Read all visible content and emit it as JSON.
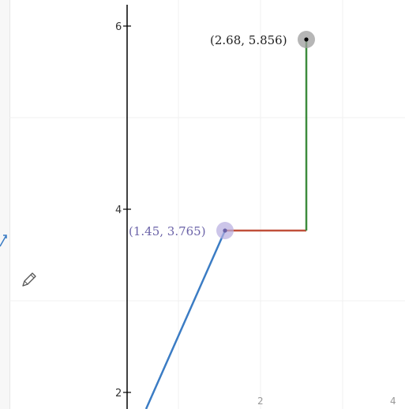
{
  "y_axis": {
    "ticks": [
      "6",
      "4",
      "2"
    ]
  },
  "x_axis": {
    "ticks": [
      "2",
      "4"
    ]
  },
  "points": [
    {
      "label": "(2.68, 5.856)",
      "color": "#000000",
      "halo": "#9e9e9e"
    },
    {
      "label": "(1.45, 3.765)",
      "color": "#6b63a8",
      "halo": "#b6ade0"
    }
  ],
  "segments": {
    "blue": "#3b7cc4",
    "red": "#c0503a",
    "green": "#3d8c3d"
  },
  "tools": {
    "pencil": "pencil-icon"
  }
}
